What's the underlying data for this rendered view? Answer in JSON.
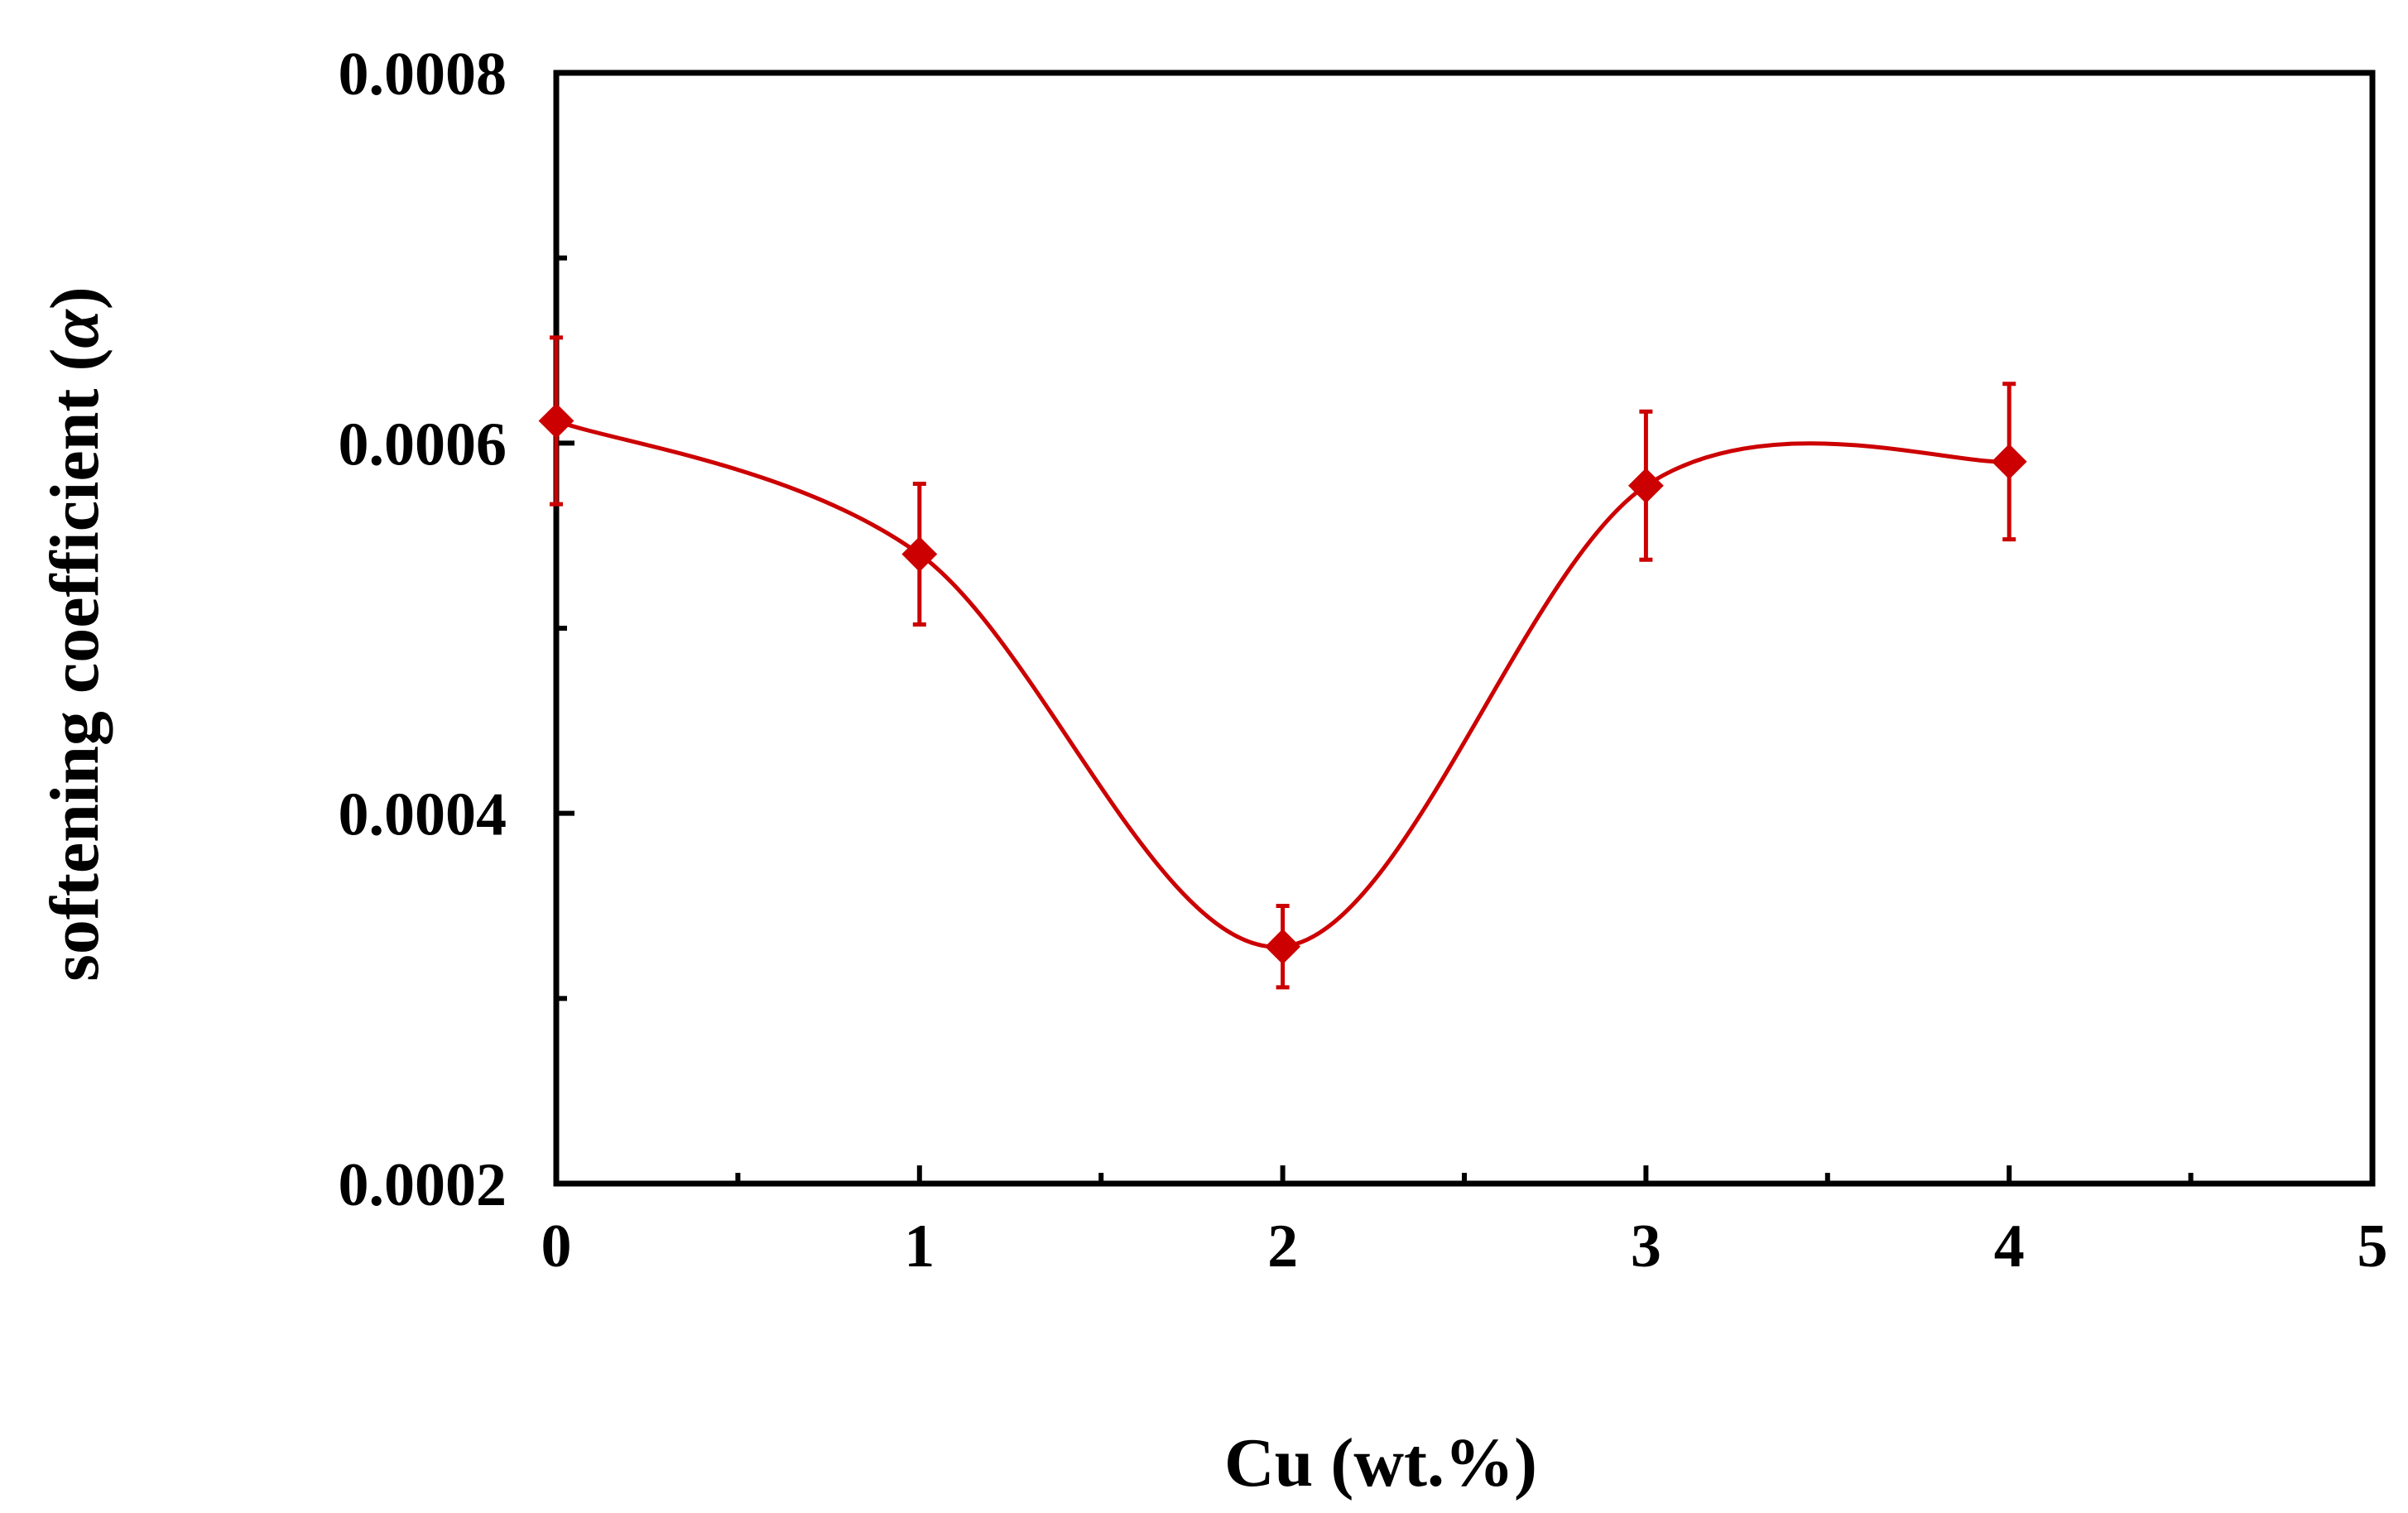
{
  "chart_data": {
    "type": "line",
    "title": "",
    "xlabel": "Cu (wt.%)",
    "ylabel_text": "softening coefficient (",
    "ylabel_symbol": "α",
    "ylabel_close": ")",
    "xlim": [
      0,
      5
    ],
    "ylim": [
      0.0002,
      0.0008
    ],
    "x_major_ticks": [
      0,
      1,
      2,
      3,
      4,
      5
    ],
    "x_minor_ticks": [
      0.5,
      1.5,
      2.5,
      3.5,
      4.5
    ],
    "y_major_ticks": [
      0.0002,
      0.0004,
      0.0006,
      0.0008
    ],
    "y_minor_ticks": [
      0.0003,
      0.0005,
      0.0007
    ],
    "x_tick_labels": [
      "0",
      "1",
      "2",
      "3",
      "4",
      "5"
    ],
    "y_tick_labels": [
      "0.0002",
      "0.0004",
      "0.0006",
      "0.0008"
    ],
    "grid": false,
    "legend": "none",
    "smooth": true,
    "series": [
      {
        "x": [
          0,
          1,
          2,
          3,
          4
        ],
        "y": [
          0.000612,
          0.00054,
          0.000328,
          0.000577,
          0.00059
        ],
        "error": [
          4.5e-05,
          3.8e-05,
          2.2e-05,
          4e-05,
          4.2e-05
        ],
        "color": "#cc0000",
        "marker": "diamond"
      }
    ]
  }
}
